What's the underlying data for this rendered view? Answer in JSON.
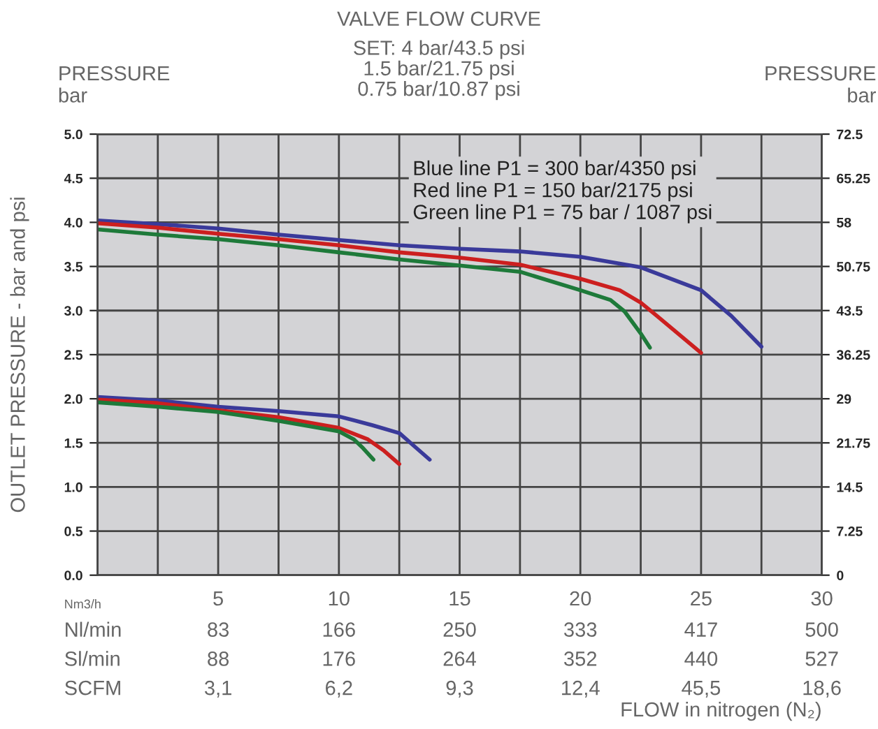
{
  "chart_data": {
    "type": "line",
    "title": "VALVE FLOW CURVE",
    "subtitle": "SET: 4 bar/43.5 psi\n1.5 bar/21.75 psi\n0.75 bar/10.87 psi",
    "xlabel": "FLOW in nitrogen (N₂)",
    "ylabel": "OUTLET PRESSURE - bar and psi",
    "annotations": [
      "Blue line P1 = 300 bar/4350 psi\nRed line P1 = 150 bar/2175 psi\nGreen line P1 = 75 bar / 1087 psi",
      "PRESSURE\nbar",
      "PRESSURE\nbar",
      "Nm3/h",
      "Nl/min",
      "Sl/min",
      "SCFM",
      "83",
      "166",
      "250",
      "333",
      "417",
      "500",
      "88",
      "176",
      "264",
      "352",
      "440",
      "527",
      "3,1",
      "6,2",
      "9,3",
      "12,4",
      "45,5",
      "18,6"
    ],
    "series": [
      {
        "color": "#3a3a9a",
        "x": [
          0,
          2.5,
          5,
          7.5,
          10,
          12.5,
          15,
          17.5,
          20,
          22.5,
          25,
          26.25,
          27.5
        ],
        "values": [
          4.02,
          3.98,
          3.93,
          3.86,
          3.8,
          3.74,
          3.7,
          3.67,
          3.61,
          3.49,
          3.23,
          2.94,
          2.59
        ]
      },
      {
        "color": "#cc1f1f",
        "x": [
          0,
          2.5,
          5,
          7.5,
          10,
          12.5,
          15,
          17.5,
          20,
          21.63,
          22.5,
          23.17,
          25
        ],
        "values": [
          3.99,
          3.94,
          3.87,
          3.81,
          3.74,
          3.66,
          3.6,
          3.52,
          3.36,
          3.23,
          3.09,
          2.94,
          2.52
        ]
      },
      {
        "color": "#1e7a3a",
        "x": [
          0,
          2.5,
          5,
          7.5,
          10,
          12.5,
          15,
          17.5,
          20,
          21.25,
          21.83,
          22.5,
          22.88
        ],
        "values": [
          3.92,
          3.86,
          3.81,
          3.74,
          3.66,
          3.58,
          3.51,
          3.44,
          3.23,
          3.12,
          2.99,
          2.74,
          2.58
        ]
      },
      {
        "color": "#3a3a9a",
        "x": [
          0,
          2.5,
          5,
          7.5,
          10,
          11.39,
          12.51,
          13.13,
          13.76
        ],
        "values": [
          2.02,
          1.98,
          1.91,
          1.86,
          1.8,
          1.7,
          1.61,
          1.46,
          1.31
        ]
      },
      {
        "color": "#cc1f1f",
        "x": [
          0,
          2.5,
          5,
          7.5,
          10,
          11.2,
          11.87,
          12.5
        ],
        "values": [
          1.99,
          1.95,
          1.87,
          1.79,
          1.67,
          1.54,
          1.41,
          1.26
        ]
      },
      {
        "color": "#1e7a3a",
        "x": [
          0,
          2.5,
          5,
          7.5,
          10,
          10.62,
          11.0,
          11.43
        ],
        "values": [
          1.96,
          1.91,
          1.85,
          1.75,
          1.63,
          1.54,
          1.44,
          1.31
        ]
      }
    ],
    "xlim": [
      0,
      30
    ],
    "xticks": [
      {
        "value": 0,
        "label": null
      },
      {
        "value": 2.5,
        "label": null
      },
      5,
      {
        "value": 7.5,
        "label": null
      },
      10,
      {
        "value": 12.5,
        "label": null
      },
      15,
      {
        "value": 17.5,
        "label": null
      },
      20,
      {
        "value": 22.5,
        "label": null
      },
      25,
      {
        "value": 27.5,
        "label": null
      },
      30
    ],
    "ylim": [
      0,
      5
    ],
    "yticks": [
      {
        "value": 0,
        "label": "0.0"
      },
      {
        "value": 0.5,
        "label": "0.5"
      },
      {
        "value": 1,
        "label": "1.0"
      },
      {
        "value": 1.5,
        "label": "1.5"
      },
      {
        "value": 2,
        "label": "2.0"
      },
      {
        "value": 2.5,
        "label": "2.5"
      },
      {
        "value": 3,
        "label": "3.0"
      },
      {
        "value": 3.5,
        "label": "3.5"
      },
      {
        "value": 4,
        "label": "4.0"
      },
      {
        "value": 4.5,
        "label": "4.5"
      },
      {
        "value": 5,
        "label": "5.0"
      }
    ],
    "y2lim": [
      0,
      72.5
    ],
    "y2ticks": [
      0,
      7.25,
      14.5,
      21.75,
      29,
      36.25,
      43.5,
      50.75,
      58,
      65.25,
      72.5
    ],
    "grid": true
  }
}
